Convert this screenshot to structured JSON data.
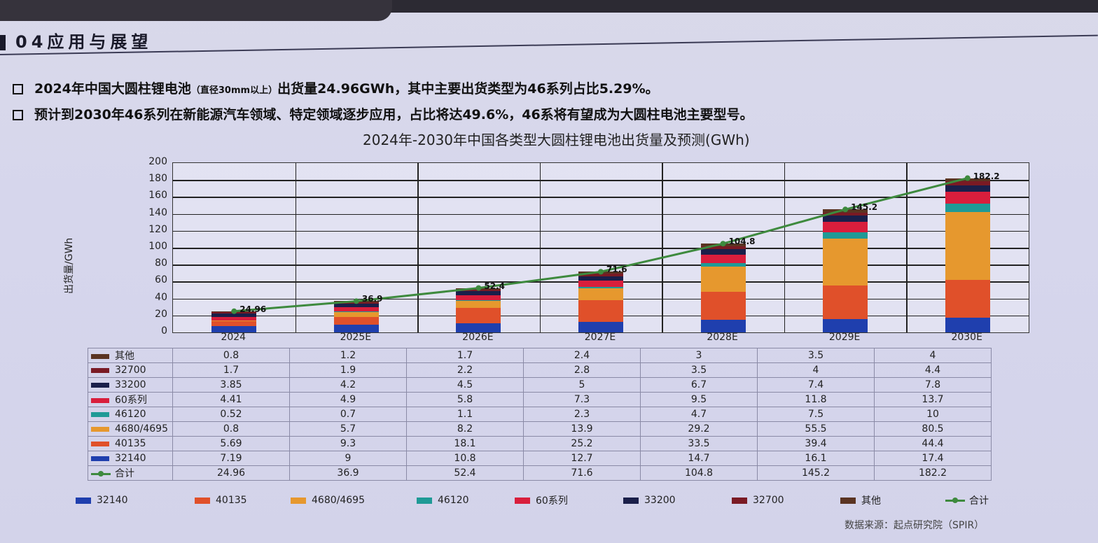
{
  "slide": {
    "section_title": "04应用与展望",
    "bullets": [
      {
        "prefix": "2024年中国大圆柱锂电池",
        "note": "（直径30mm以上）",
        "text": "出货量24.96GWh，其中主要出货类型为46系列占比5.29%。"
      },
      {
        "prefix": "",
        "note": "",
        "text": "预计到2030年46系列在新能源汽车领域、特定领域逐步应用，占比将达49.6%，46系将有望成为大圆柱电池主要型号。"
      }
    ],
    "source": "数据来源：起点研究院（SPIR）"
  },
  "chart_data": {
    "type": "bar",
    "stacked": true,
    "title": "2024年-2030年中国各类型大圆柱锂电池出货量及预测(GWh)",
    "xlabel": "",
    "ylabel": "出货量/GWh",
    "ylim": [
      0,
      200
    ],
    "yticks": [
      0,
      20,
      40,
      60,
      80,
      100,
      120,
      140,
      160,
      180,
      200
    ],
    "grid": true,
    "legend_position": "bottom",
    "categories": [
      "2024",
      "2025E",
      "2026E",
      "2027E",
      "2028E",
      "2029E",
      "2030E"
    ],
    "series": [
      {
        "name": "32140",
        "color": "#1f3fae",
        "values": [
          7.19,
          9,
          10.8,
          12.7,
          14.7,
          16.1,
          17.4
        ]
      },
      {
        "name": "40135",
        "color": "#e0502a",
        "values": [
          5.69,
          9.3,
          18.1,
          25.2,
          33.5,
          39.4,
          44.4
        ]
      },
      {
        "name": "4680/4695",
        "color": "#e6982e",
        "values": [
          0.8,
          5.7,
          8.2,
          13.9,
          29.2,
          55.5,
          80.5
        ]
      },
      {
        "name": "46120",
        "color": "#1f9a96",
        "values": [
          0.52,
          0.7,
          1.1,
          2.3,
          4.7,
          7.5,
          10
        ]
      },
      {
        "name": "60系列",
        "color": "#d91e3c",
        "values": [
          4.41,
          4.9,
          5.8,
          7.3,
          9.5,
          11.8,
          13.7
        ]
      },
      {
        "name": "33200",
        "color": "#1a1f4a",
        "values": [
          3.85,
          4.2,
          4.5,
          5,
          6.7,
          7.4,
          7.8
        ]
      },
      {
        "name": "32700",
        "color": "#7a1a24",
        "values": [
          1.7,
          1.9,
          2.2,
          2.8,
          3.5,
          4,
          4.4
        ]
      },
      {
        "name": "其他",
        "color": "#5a3422",
        "values": [
          0.8,
          1.2,
          1.7,
          2.4,
          3,
          3.5,
          4
        ]
      },
      {
        "name": "合计",
        "type": "line",
        "color": "#3e8a3e",
        "values": [
          24.96,
          36.9,
          52.4,
          71.6,
          104.8,
          145.2,
          182.2
        ]
      }
    ],
    "table_rows_order": [
      "其他",
      "32700",
      "33200",
      "60系列",
      "46120",
      "4680/4695",
      "40135",
      "32140",
      "合计"
    ],
    "total_labels": [
      "24.96",
      "36.9",
      "52.4",
      "71.6",
      "104.8",
      "145.2",
      "182.2"
    ]
  },
  "table": {
    "header": [
      "",
      "2024",
      "2025E",
      "2026E",
      "2027E",
      "2028E",
      "2029E",
      "2030E"
    ],
    "rows": [
      {
        "label": "其他",
        "color": "#5a3422",
        "cells": [
          "0.8",
          "1.2",
          "1.7",
          "2.4",
          "3",
          "3.5",
          "4"
        ]
      },
      {
        "label": "32700",
        "color": "#7a1a24",
        "cells": [
          "1.7",
          "1.9",
          "2.2",
          "2.8",
          "3.5",
          "4",
          "4.4"
        ]
      },
      {
        "label": "33200",
        "color": "#1a1f4a",
        "cells": [
          "3.85",
          "4.2",
          "4.5",
          "5",
          "6.7",
          "7.4",
          "7.8"
        ]
      },
      {
        "label": "60系列",
        "color": "#d91e3c",
        "cells": [
          "4.41",
          "4.9",
          "5.8",
          "7.3",
          "9.5",
          "11.8",
          "13.7"
        ]
      },
      {
        "label": "46120",
        "color": "#1f9a96",
        "cells": [
          "0.52",
          "0.7",
          "1.1",
          "2.3",
          "4.7",
          "7.5",
          "10"
        ]
      },
      {
        "label": "4680/4695",
        "color": "#e6982e",
        "cells": [
          "0.8",
          "5.7",
          "8.2",
          "13.9",
          "29.2",
          "55.5",
          "80.5"
        ]
      },
      {
        "label": "40135",
        "color": "#e0502a",
        "cells": [
          "5.69",
          "9.3",
          "18.1",
          "25.2",
          "33.5",
          "39.4",
          "44.4"
        ]
      },
      {
        "label": "32140",
        "color": "#1f3fae",
        "cells": [
          "7.19",
          "9",
          "10.8",
          "12.7",
          "14.7",
          "16.1",
          "17.4"
        ]
      },
      {
        "label": "合计",
        "color": "#3e8a3e",
        "line": true,
        "cells": [
          "24.96",
          "36.9",
          "52.4",
          "71.6",
          "104.8",
          "145.2",
          "182.2"
        ]
      }
    ]
  },
  "legend": [
    {
      "label": "32140",
      "color": "#1f3fae"
    },
    {
      "label": "40135",
      "color": "#e0502a"
    },
    {
      "label": "4680/4695",
      "color": "#e6982e"
    },
    {
      "label": "46120",
      "color": "#1f9a96"
    },
    {
      "label": "60系列",
      "color": "#d91e3c"
    },
    {
      "label": "33200",
      "color": "#1a1f4a"
    },
    {
      "label": "32700",
      "color": "#7a1a24"
    },
    {
      "label": "其他",
      "color": "#5a3422"
    },
    {
      "label": "合计",
      "color": "#3e8a3e",
      "line": true
    }
  ]
}
